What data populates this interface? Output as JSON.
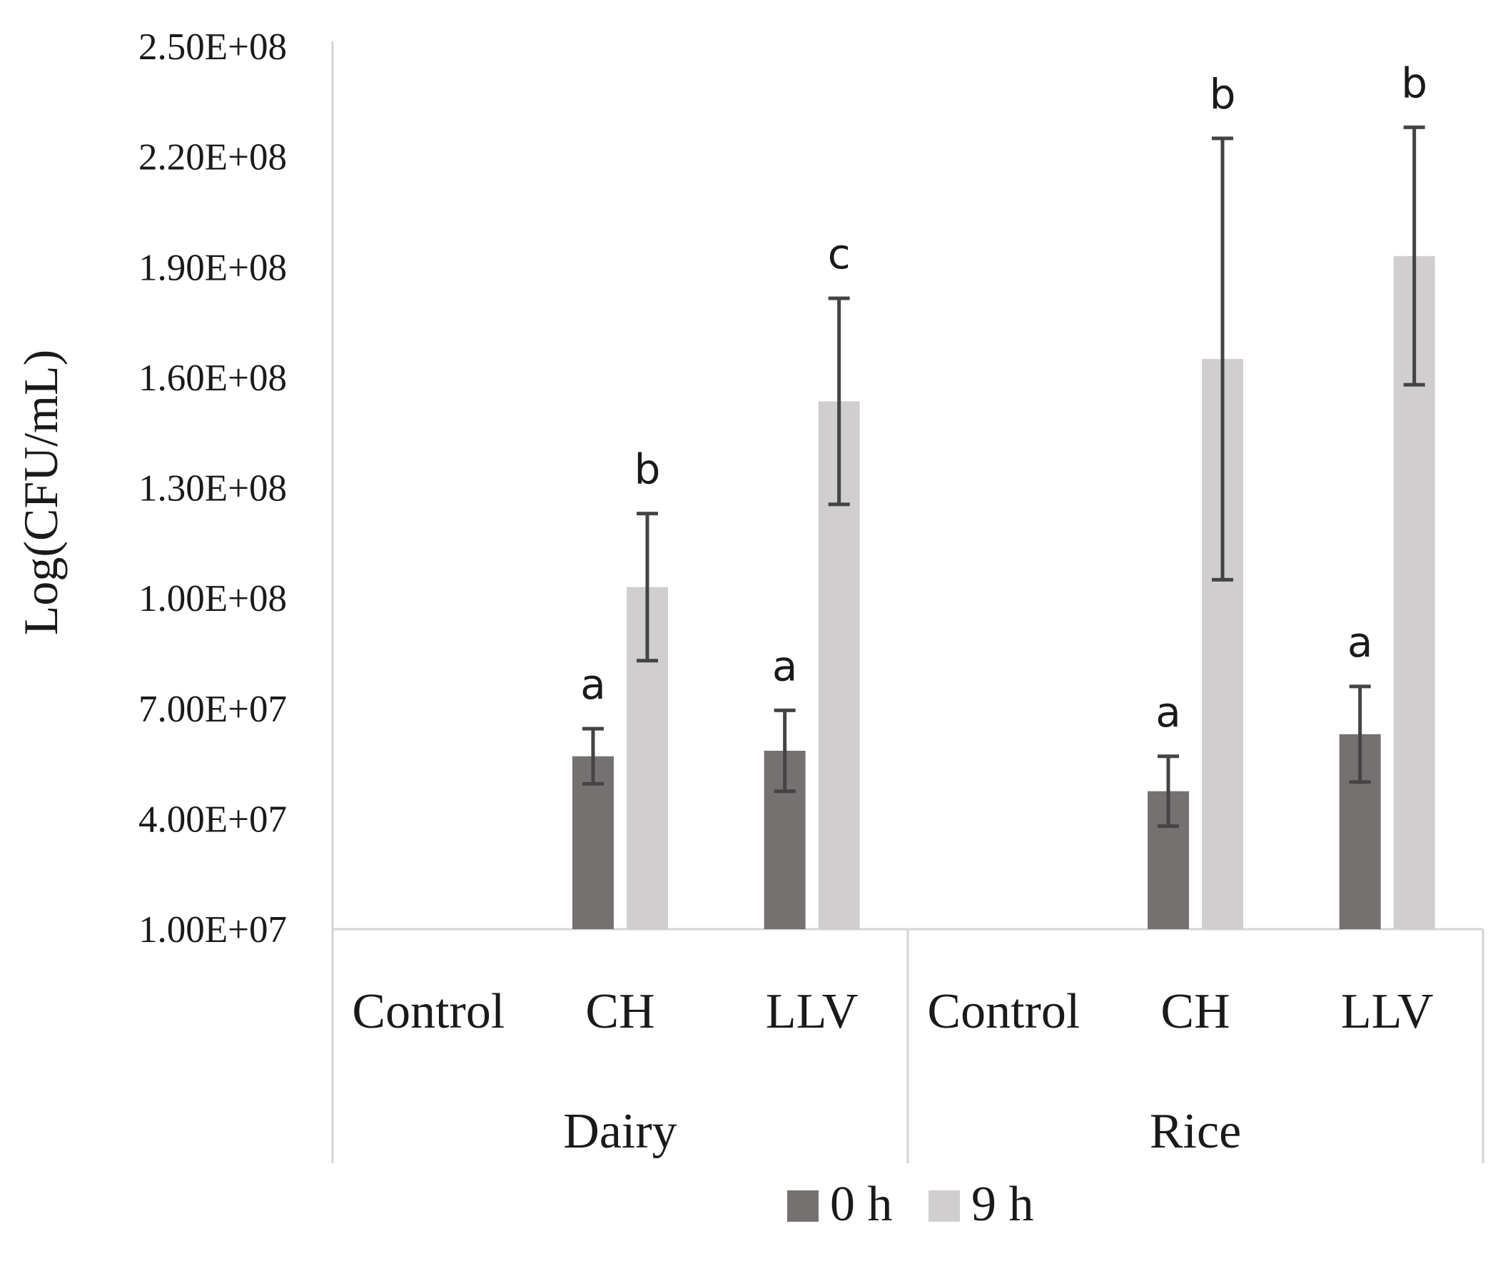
{
  "chart_data": {
    "type": "bar",
    "title": "",
    "xlabel": "",
    "ylabel": "Log(CFU/mL)",
    "ylim": [
      10000000,
      250000000
    ],
    "yticks": [
      10000000,
      40000000,
      70000000,
      100000000,
      130000000,
      160000000,
      190000000,
      220000000,
      250000000
    ],
    "ytick_labels": [
      "1.00E+07",
      "4.00E+07",
      "7.00E+07",
      "1.00E+08",
      "1.30E+08",
      "1.60E+08",
      "1.90E+08",
      "2.20E+08",
      "2.50E+08"
    ],
    "grid": false,
    "legend_position": "bottom",
    "groups": [
      {
        "name": "Dairy",
        "categories": [
          "Control",
          "CH",
          "LLV"
        ]
      },
      {
        "name": "Rice",
        "categories": [
          "Control",
          "CH",
          "LLV"
        ]
      }
    ],
    "series": [
      {
        "name": "0 h",
        "color": "#767171",
        "values": [
          null,
          57000000,
          58500000,
          null,
          47500000,
          63000000
        ],
        "errors": [
          null,
          7500000,
          11000000,
          null,
          9500000,
          13000000
        ],
        "labels": [
          null,
          "a",
          "a",
          null,
          "a",
          "a"
        ]
      },
      {
        "name": "9 h",
        "color": "#d0cece",
        "values": [
          null,
          103000000,
          153500000,
          null,
          165000000,
          193000000
        ],
        "errors": [
          null,
          20000000,
          28000000,
          null,
          60000000,
          35000000
        ],
        "labels": [
          null,
          "b",
          "c",
          null,
          "b",
          "b"
        ]
      }
    ]
  }
}
